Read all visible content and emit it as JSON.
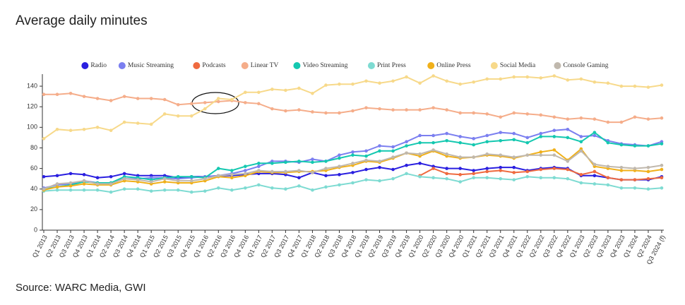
{
  "chart_data": {
    "type": "line",
    "title": "Average daily minutes",
    "source": "Source: WARC Media, GWI",
    "categories": [
      "Q1 2013",
      "Q2 2013",
      "Q3 2013",
      "Q4 2013",
      "Q1 2014",
      "Q2 2014",
      "Q3 2014",
      "Q4 2014",
      "Q1 2015",
      "Q2 2015",
      "Q3 2015",
      "Q4 2015",
      "Q1 2016",
      "Q2 2016",
      "Q3 2016",
      "Q4 2016",
      "Q1 2017",
      "Q2 2017",
      "Q3 2017",
      "Q4 2017",
      "Q1 2018",
      "Q2 2018",
      "Q3 2018",
      "Q4 2018",
      "Q1 2019",
      "Q2 2019",
      "Q3 2019",
      "Q4 2019",
      "Q1 2020",
      "Q2 2020",
      "Q3 2020",
      "Q4 2020",
      "Q1 2021",
      "Q2 2021",
      "Q3 2021",
      "Q4 2021",
      "Q1 2022",
      "Q2 2022",
      "Q3 2022",
      "Q4 2022",
      "Q1 2023",
      "Q2 2023",
      "Q3 2023",
      "Q4 2023",
      "Q1 2024",
      "Q2 2024",
      "Q3 2024 (f)"
    ],
    "ylim": [
      0,
      150
    ],
    "yticks": [
      0,
      20,
      40,
      60,
      80,
      100,
      120,
      140
    ],
    "legend": "top",
    "series": [
      {
        "name": "Radio",
        "color": "#2a1fe0",
        "values": [
          52,
          53,
          55,
          54,
          51,
          52,
          55,
          53,
          53,
          53,
          51,
          52,
          52,
          53,
          53,
          54,
          55,
          55,
          54,
          51,
          56,
          53,
          54,
          56,
          59,
          61,
          59,
          63,
          65,
          62,
          60,
          60,
          58,
          60,
          61,
          61,
          58,
          60,
          61,
          60,
          53,
          53,
          51,
          49,
          49,
          49,
          52
        ]
      },
      {
        "name": "Music Streaming",
        "color": "#7b7ff0",
        "values": [
          41,
          44,
          45,
          48,
          46,
          46,
          50,
          50,
          51,
          51,
          50,
          51,
          52,
          53,
          55,
          58,
          62,
          67,
          67,
          66,
          69,
          67,
          73,
          76,
          77,
          82,
          81,
          86,
          92,
          92,
          94,
          91,
          89,
          92,
          95,
          94,
          90,
          94,
          97,
          98,
          91,
          92,
          87,
          84,
          83,
          82,
          86
        ]
      },
      {
        "name": "Podcasts",
        "color": "#ef6a3f",
        "values": [
          null,
          null,
          null,
          null,
          null,
          null,
          null,
          null,
          null,
          null,
          null,
          null,
          null,
          null,
          null,
          null,
          null,
          null,
          null,
          null,
          null,
          null,
          null,
          null,
          null,
          null,
          null,
          null,
          53,
          60,
          55,
          54,
          55,
          57,
          58,
          56,
          57,
          59,
          60,
          59,
          54,
          57,
          51,
          49,
          49,
          50,
          51
        ]
      },
      {
        "name": "Linear TV",
        "color": "#f5ad8a",
        "values": [
          132,
          132,
          133,
          130,
          128,
          126,
          130,
          128,
          128,
          127,
          122,
          123,
          124,
          125,
          126,
          124,
          123,
          118,
          116,
          117,
          115,
          114,
          114,
          116,
          119,
          118,
          117,
          117,
          117,
          119,
          117,
          114,
          114,
          113,
          110,
          114,
          113,
          112,
          110,
          108,
          109,
          108,
          105,
          105,
          110,
          108,
          109
        ]
      },
      {
        "name": "Video Streaming",
        "color": "#14c8b0",
        "values": [
          40,
          42,
          44,
          47,
          46,
          46,
          52,
          51,
          49,
          51,
          52,
          52,
          51,
          60,
          58,
          62,
          65,
          65,
          66,
          67,
          66,
          67,
          70,
          73,
          72,
          77,
          77,
          82,
          85,
          85,
          87,
          85,
          83,
          86,
          87,
          88,
          85,
          91,
          91,
          90,
          86,
          95,
          85,
          83,
          82,
          82,
          84
        ]
      },
      {
        "name": "Print Press",
        "color": "#7edbd2",
        "values": [
          38,
          39,
          39,
          39,
          39,
          37,
          40,
          40,
          38,
          39,
          39,
          37,
          38,
          41,
          39,
          41,
          44,
          41,
          40,
          43,
          39,
          42,
          44,
          46,
          49,
          48,
          50,
          55,
          52,
          51,
          50,
          47,
          51,
          51,
          50,
          49,
          52,
          51,
          51,
          50,
          46,
          45,
          44,
          41,
          41,
          40,
          41
        ]
      },
      {
        "name": "Online Press",
        "color": "#f0b01a",
        "values": [
          39,
          42,
          43,
          45,
          44,
          44,
          48,
          47,
          45,
          47,
          46,
          46,
          48,
          52,
          51,
          53,
          57,
          56,
          56,
          57,
          57,
          58,
          61,
          63,
          67,
          66,
          70,
          75,
          72,
          77,
          72,
          70,
          71,
          73,
          72,
          70,
          73,
          76,
          78,
          68,
          79,
          62,
          60,
          58,
          58,
          57,
          59
        ]
      },
      {
        "name": "Social Media",
        "color": "#f7d98a",
        "values": [
          89,
          98,
          97,
          98,
          100,
          97,
          105,
          104,
          103,
          113,
          111,
          111,
          118,
          128,
          127,
          134,
          134,
          137,
          136,
          138,
          133,
          141,
          142,
          142,
          145,
          143,
          145,
          149,
          143,
          150,
          145,
          142,
          144,
          147,
          147,
          149,
          149,
          148,
          150,
          146,
          147,
          144,
          143,
          140,
          140,
          139,
          141
        ]
      },
      {
        "name": "Console Gaming",
        "color": "#c0b8ad",
        "values": [
          40,
          45,
          46,
          48,
          45,
          45,
          50,
          49,
          47,
          50,
          48,
          48,
          50,
          53,
          54,
          55,
          58,
          57,
          57,
          58,
          56,
          60,
          62,
          65,
          68,
          67,
          71,
          75,
          74,
          78,
          74,
          71,
          71,
          74,
          73,
          71,
          73,
          73,
          73,
          67,
          77,
          64,
          62,
          61,
          60,
          61,
          63
        ]
      }
    ]
  }
}
